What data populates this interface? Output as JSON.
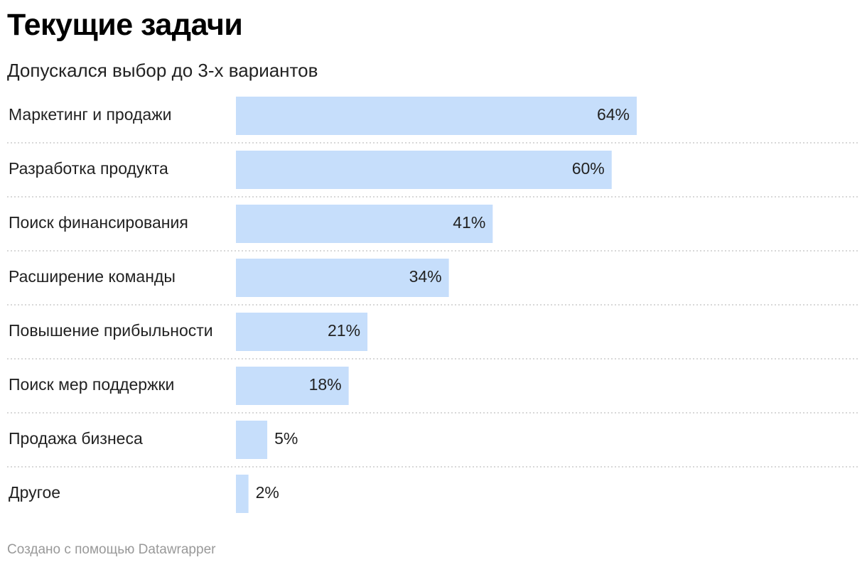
{
  "title": "Текущие задачи",
  "subtitle": "Допускался выбор до 3-х вариантов",
  "footer": "Создано с помощью Datawrapper",
  "colors": {
    "bar": "#c6defb",
    "separator": "#cccccc",
    "label": "#222222"
  },
  "chart_data": {
    "type": "bar",
    "orientation": "horizontal",
    "title": "Текущие задачи",
    "subtitle": "Допускался выбор до 3-х вариантов",
    "categories": [
      "Маркетинг и продажи",
      "Разработка продукта",
      "Поиск финансирования",
      "Расширение команды",
      "Повышение прибыльности",
      "Поиск мер поддержки",
      "Продажа бизнеса",
      "Другое"
    ],
    "values": [
      64,
      60,
      41,
      34,
      21,
      18,
      5,
      2
    ],
    "value_labels": [
      "64%",
      "60%",
      "41%",
      "34%",
      "21%",
      "18%",
      "5%",
      "2%"
    ],
    "unit": "%",
    "xlim": [
      0,
      100
    ],
    "grid": false,
    "legend": "none"
  }
}
